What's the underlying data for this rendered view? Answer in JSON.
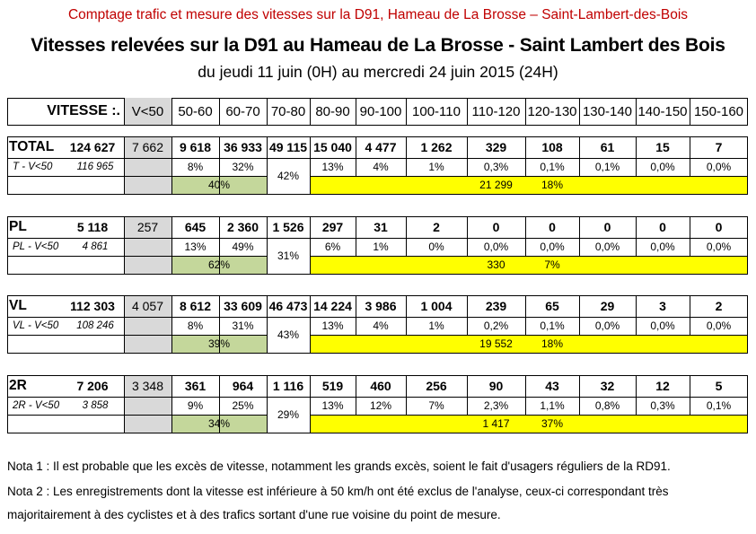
{
  "doc_header": "Comptage trafic et mesure des vitesses sur la D91, Hameau de La Brosse – Saint-Lambert-des-Bois",
  "title": "Vitesses relevées sur la D91 au Hameau de La Brosse - Saint Lambert des Bois",
  "subtitle": "du jeudi 11 juin (0H) au mercredi 24 juin 2015 (24H)",
  "colors": {
    "header_red": "#c00000",
    "gray": "#d9d9d9",
    "green": "#c4d79b",
    "yellow": "#ffff00"
  },
  "table": {
    "speed_label": "VITESSE :.",
    "speed_ranges": [
      "V<50",
      "50-60",
      "60-70",
      "70-80",
      "80-90",
      "90-100",
      "100-110",
      "110-120",
      "120-130",
      "130-140",
      "140-150",
      "150-160"
    ],
    "groups": [
      {
        "label": "TOTAL",
        "total": "124 627",
        "counts": [
          "7 662",
          "9 618",
          "36 933",
          "49 115",
          "15 040",
          "4 477",
          "1 262",
          "329",
          "108",
          "61",
          "15",
          "7"
        ],
        "sub_label": "T - V<50",
        "sub_total": "116 965",
        "pct_low": [
          "8%",
          "32%"
        ],
        "pct_70_80": "42%",
        "pct_high": [
          "13%",
          "4%",
          "1%",
          "0,3%",
          "0,1%",
          "0,1%",
          "0,0%",
          "0,0%"
        ],
        "green_pct": "40%",
        "excess_count": "21 299",
        "excess_pct": "18%"
      },
      {
        "label": "PL",
        "total": "5 118",
        "counts": [
          "257",
          "645",
          "2 360",
          "1 526",
          "297",
          "31",
          "2",
          "0",
          "0",
          "0",
          "0",
          "0"
        ],
        "sub_label": "PL - V<50",
        "sub_total": "4 861",
        "pct_low": [
          "13%",
          "49%"
        ],
        "pct_70_80": "31%",
        "pct_high": [
          "6%",
          "1%",
          "0%",
          "0,0%",
          "0,0%",
          "0,0%",
          "0,0%",
          "0,0%"
        ],
        "green_pct": "62%",
        "excess_count": "330",
        "excess_pct": "7%"
      },
      {
        "label": "VL",
        "total": "112 303",
        "counts": [
          "4 057",
          "8 612",
          "33 609",
          "46 473",
          "14 224",
          "3 986",
          "1 004",
          "239",
          "65",
          "29",
          "3",
          "2"
        ],
        "sub_label": "VL - V<50",
        "sub_total": "108 246",
        "pct_low": [
          "8%",
          "31%"
        ],
        "pct_70_80": "43%",
        "pct_high": [
          "13%",
          "4%",
          "1%",
          "0,2%",
          "0,1%",
          "0,0%",
          "0,0%",
          "0,0%"
        ],
        "green_pct": "39%",
        "excess_count": "19 552",
        "excess_pct": "18%"
      },
      {
        "label": "2R",
        "total": "7 206",
        "counts": [
          "3 348",
          "361",
          "964",
          "1 116",
          "519",
          "460",
          "256",
          "90",
          "43",
          "32",
          "12",
          "5"
        ],
        "sub_label": "2R - V<50",
        "sub_total": "3 858",
        "pct_low": [
          "9%",
          "25%"
        ],
        "pct_70_80": "29%",
        "pct_high": [
          "13%",
          "12%",
          "7%",
          "2,3%",
          "1,1%",
          "0,8%",
          "0,3%",
          "0,1%"
        ],
        "green_pct": "34%",
        "excess_count": "1 417",
        "excess_pct": "37%"
      }
    ]
  },
  "notes": [
    "Nota 1 : Il est probable que les excès de vitesse, notamment les grands excès, soient le fait d'usagers réguliers de la RD91.",
    "Nota 2 : Les enregistrements dont la vitesse est inférieure à 50 km/h ont été exclus de l'analyse, ceux-ci correspondant très",
    "majoritairement à des cyclistes et à des trafics sortant d'une rue voisine du point de mesure."
  ]
}
